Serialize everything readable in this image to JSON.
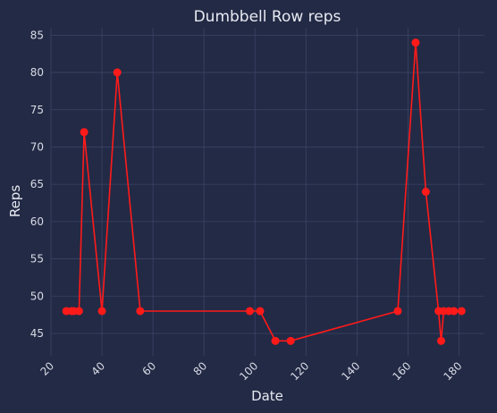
{
  "chart_data": {
    "type": "line",
    "title": "Dumbbell Row reps",
    "xlabel": "Date",
    "ylabel": "Reps",
    "xlim": [
      20,
      190
    ],
    "ylim": [
      42,
      86
    ],
    "xticks": [
      20,
      40,
      60,
      80,
      100,
      120,
      140,
      160,
      180
    ],
    "yticks": [
      45,
      50,
      55,
      60,
      65,
      70,
      75,
      80,
      85
    ],
    "grid": true,
    "series": [
      {
        "color": "#ff1a1a",
        "x": [
          26,
          28,
          29,
          31,
          33,
          40,
          46,
          55,
          98,
          102,
          108,
          114,
          156,
          163,
          167,
          172,
          173,
          174,
          176,
          178,
          181
        ],
        "y": [
          48,
          48,
          48,
          48,
          72,
          48,
          80,
          48,
          48,
          48,
          44,
          44,
          48,
          84,
          64,
          48,
          44,
          48,
          48,
          48,
          48
        ]
      }
    ]
  }
}
